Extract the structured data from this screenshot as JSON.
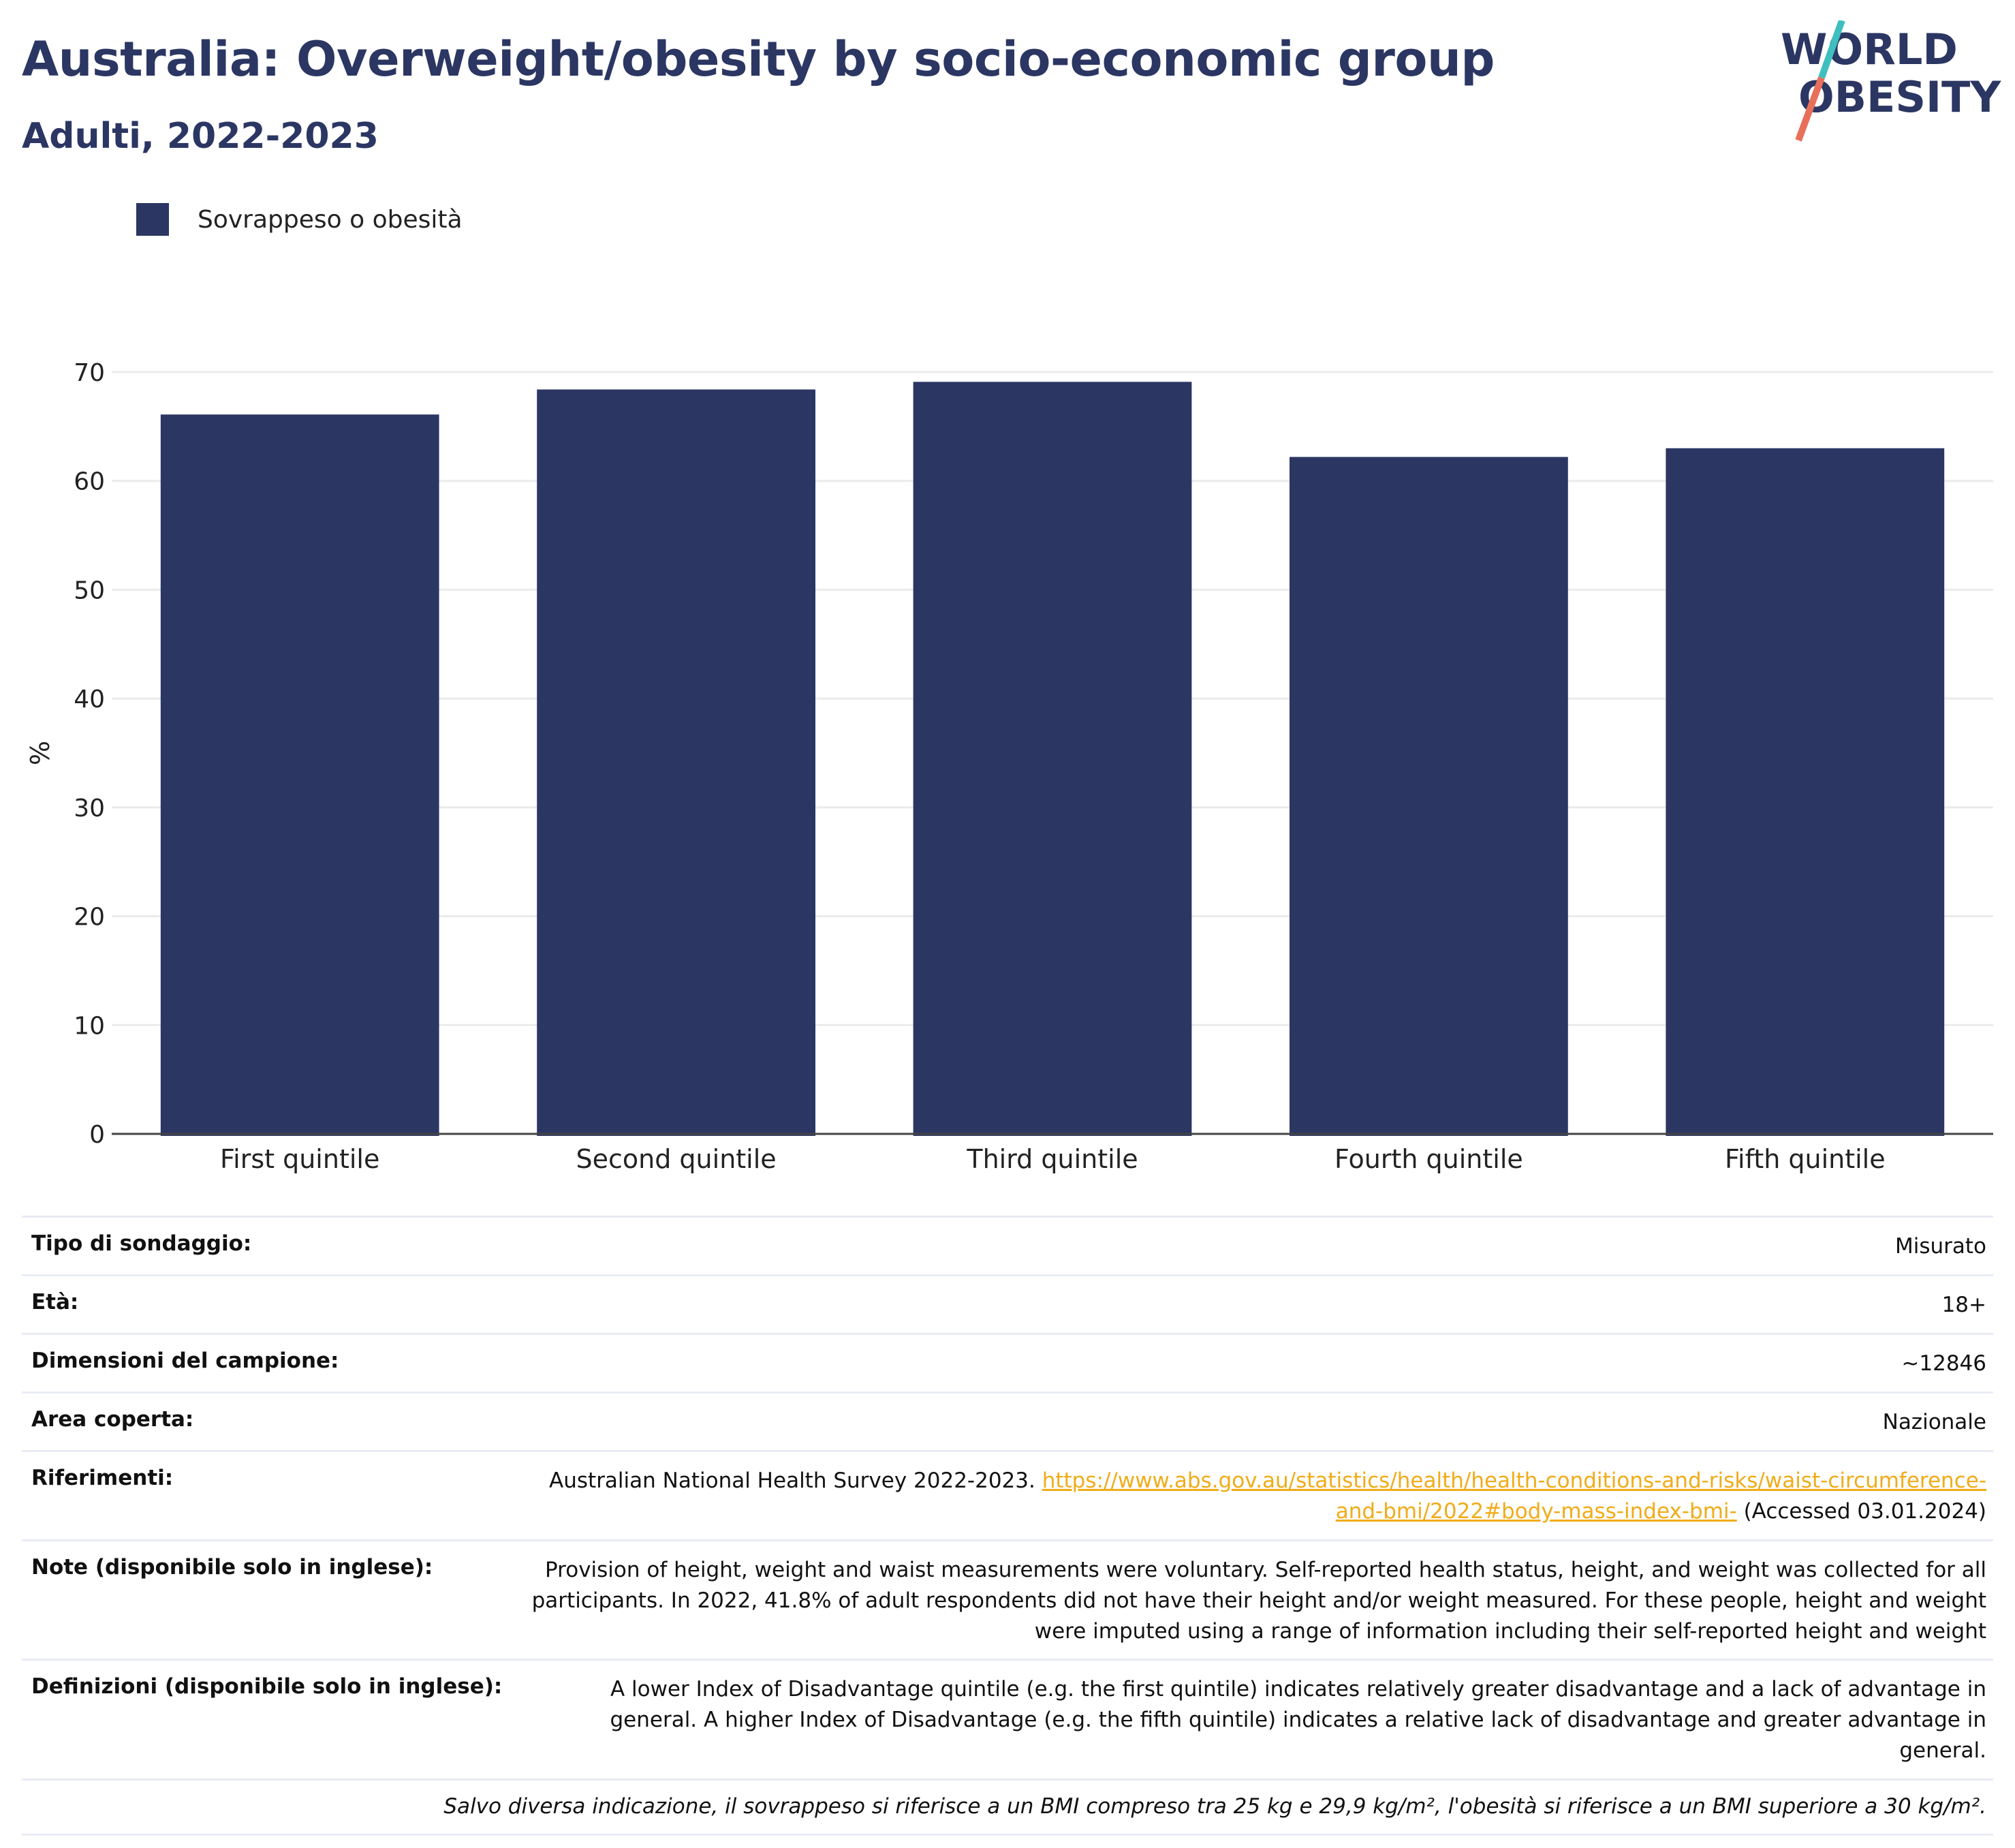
{
  "header": {
    "title": "Australia: Overweight/obesity by socio-economic group",
    "subtitle": "Adulti, 2022-2023"
  },
  "logo": {
    "line1": "WORLD",
    "line2": "OBESITY"
  },
  "colors": {
    "bar": "#2b3663",
    "title": "#2b3663",
    "link": "#f0ac19",
    "logo_teal": "#3fbfbf",
    "logo_coral": "#e8705a"
  },
  "chart_data": {
    "type": "bar",
    "categories": [
      "First quintile",
      "Second quintile",
      "Third quintile",
      "Fourth quintile",
      "Fifth quintile"
    ],
    "series": [
      {
        "name": "Sovrappeso o obesità",
        "values": [
          66.1,
          68.4,
          69.1,
          62.2,
          63.0
        ]
      }
    ],
    "ylabel": "%",
    "xlabel": "",
    "ylim": [
      0,
      70
    ],
    "yticks": [
      0,
      10,
      20,
      30,
      40,
      50,
      60,
      70
    ],
    "grid": true,
    "legend": "top-left"
  },
  "info": {
    "rows": [
      {
        "key": "Tipo di sondaggio:",
        "value": "Misurato"
      },
      {
        "key": "Età:",
        "value": "18+"
      },
      {
        "key": "Dimensioni del campione:",
        "value": "~12846"
      },
      {
        "key": "Area coperta:",
        "value": "Nazionale"
      }
    ],
    "references": {
      "key": "Riferimenti:",
      "text": "Australian National Health Survey 2022-2023.",
      "link": "https://www.abs.gov.au/statistics/health/health-conditions-and-risks/waist-circumference-and-bmi/2022#body-mass-index-bmi-",
      "accessed": "(Accessed 03.01.2024)"
    },
    "notes": {
      "key": "Note (disponibile solo in inglese):",
      "value": "Provision of height, weight and waist measurements were voluntary. Self-reported health status, height, and weight was collected for all participants. In 2022, 41.8% of adult respondents did not have their height and/or weight measured. For these people, height and weight were imputed using a range of information including their self-reported height and weight"
    },
    "definitions": {
      "key": "Definizioni (disponibile solo in inglese):",
      "value": "A lower Index of Disadvantage quintile (e.g. the first quintile) indicates relatively greater disadvantage and a lack of advantage in general. A higher Index of Disadvantage (e.g. the fifth quintile) indicates a relative lack of disadvantage and greater advantage in general."
    },
    "footnote": "Salvo diversa indicazione, il sovrappeso si riferisce a un BMI compreso tra 25 kg e 29,9 kg/m², l'obesità si riferisce a un BMI superiore a 30 kg/m²."
  }
}
